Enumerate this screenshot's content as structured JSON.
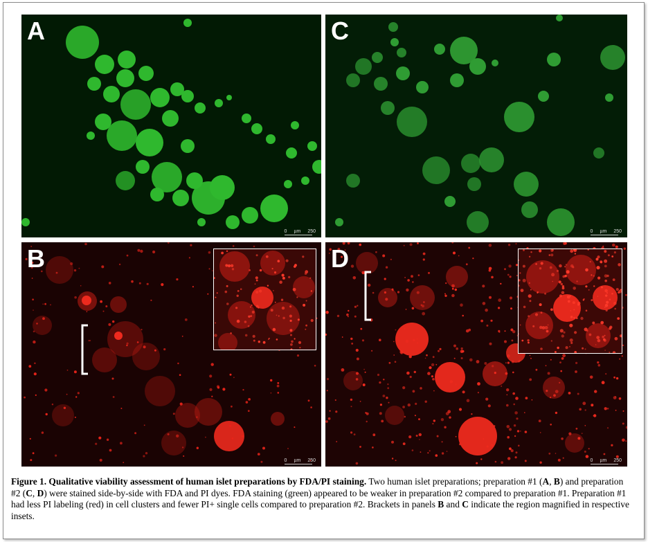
{
  "panels": {
    "A": {
      "label": "A",
      "scale": {
        "min": "0",
        "unit": "µm",
        "max": "250"
      }
    },
    "B": {
      "label": "B",
      "scale": {
        "min": "0",
        "unit": "µm",
        "max": "250"
      }
    },
    "C": {
      "label": "C",
      "scale": {
        "min": "0",
        "unit": "µm",
        "max": "250"
      }
    },
    "D": {
      "label": "D",
      "scale": {
        "min": "0",
        "unit": "µm",
        "max": "250"
      }
    }
  },
  "colors": {
    "green_bg": "#021a04",
    "green_cell": "#2fb82e",
    "red_bg": "#1a0303",
    "red_cell": "#e8241a"
  },
  "caption": {
    "figure_label": "Figure 1. Qualitative viability assessment of human islet preparations by FDA/PI staining.",
    "t1": " Two human islet preparations; preparation #1 (",
    "A": "A",
    "t2": ", ",
    "B": "B",
    "t3": ") and preparation #2 (",
    "C": "C",
    "t4": ", ",
    "D": "D",
    "t5": ") were stained side-by-side with FDA and PI dyes. FDA staining (green) appeared to be weaker in preparation #2 compared to preparation #1. Preparation #1 had less PI labeling (red) in cell clusters and fewer PI+ single cells compared to preparation #2. Brackets in panels ",
    "B2": "B",
    "t6": " and ",
    "C2": "C",
    "t7": " indicate the region magnified in respective insets."
  }
}
